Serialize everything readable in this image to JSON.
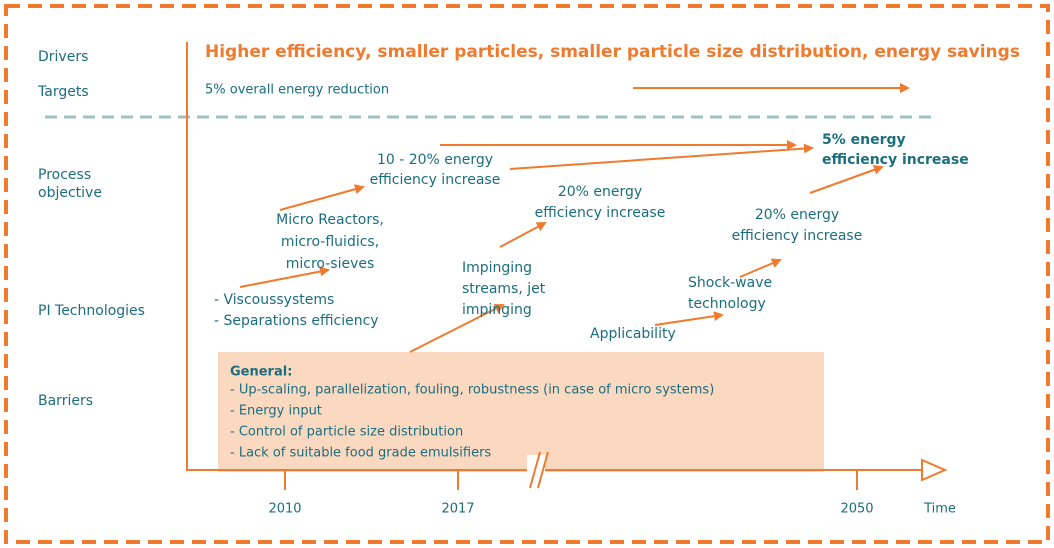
{
  "row_labels": [
    [
      "Drivers"
    ],
    [
      "Targets"
    ],
    [
      "Process",
      "objective"
    ],
    [
      "PI Technologies"
    ],
    [
      "Barriers"
    ]
  ],
  "drivers": "Higher efficiency, smaller particles, smaller particle size distribution, energy savings",
  "targets": "5% overall energy reduction",
  "nodes": [
    {
      "lines": [
        "10 - 20% energy",
        "efficiency increase"
      ]
    },
    {
      "lines": [
        "Micro Reactors,",
        "micro-fluidics,",
        "micro-sieves"
      ]
    },
    {
      "lines": [
        "- Viscoussystems",
        "- Separations efficiency"
      ]
    },
    {
      "lines": [
        "20% energy",
        "efficiency increase"
      ]
    },
    {
      "lines": [
        "Impinging",
        "streams, jet",
        "impinging"
      ]
    },
    {
      "lines": [
        "5% energy",
        "efficiency increase"
      ]
    },
    {
      "lines": [
        "20% energy",
        "efficiency increase"
      ]
    },
    {
      "lines": [
        "Shock-wave",
        "technology"
      ]
    },
    {
      "lines": [
        "Applicability"
      ]
    }
  ],
  "barriers": {
    "title": "General:",
    "items": [
      "- Up-scaling, parallelization, fouling, robustness  (in case of micro systems)",
      "- Energy input",
      "- Control of particle size distribution",
      "- Lack of suitable food grade emulsifiers"
    ]
  },
  "axis": {
    "years": [
      "2010",
      "2017",
      "2050"
    ],
    "label": "Time"
  }
}
